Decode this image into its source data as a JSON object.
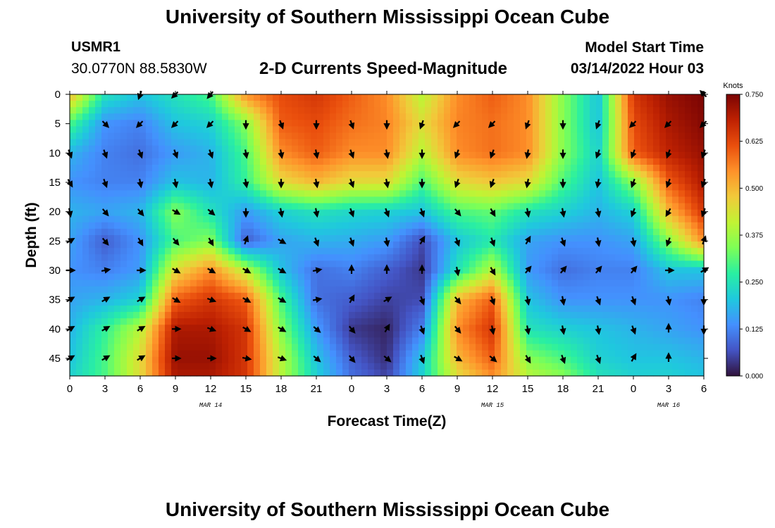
{
  "header": {
    "title": "University of Southern Mississippi Ocean Cube",
    "station": "USMR1",
    "coords": "30.0770N  88.5830W",
    "plot_title": "2-D Currents Speed-Magnitude",
    "model_label": "Model Start Time",
    "model_time": "03/14/2022 Hour 03"
  },
  "footer": {
    "title": "University of Southern Mississippi Ocean Cube"
  },
  "chart_data": {
    "type": "heatmap",
    "title": "2-D Currents Speed-Magnitude",
    "xlabel": "Forecast Time(Z)",
    "ylabel": "Depth (ft)",
    "x_tick_labels": [
      "0",
      "3",
      "6",
      "9",
      "12",
      "15",
      "18",
      "21",
      "0",
      "3",
      "6",
      "9",
      "12",
      "15",
      "18",
      "21",
      "0",
      "3",
      "6"
    ],
    "x_range": [
      0,
      54
    ],
    "date_labels": [
      {
        "text": "MAR 14",
        "hour": 12
      },
      {
        "text": "MAR 15",
        "hour": 36
      },
      {
        "text": "MAR 16",
        "hour": 51
      }
    ],
    "y_ticks": [
      0,
      5,
      10,
      15,
      20,
      25,
      30,
      35,
      40,
      45
    ],
    "y_range": [
      0,
      48
    ],
    "colorbar": {
      "unit": "Knots",
      "ticks": [
        "0.750",
        "0.625",
        "0.500",
        "0.375",
        "0.250",
        "0.125",
        "0.000"
      ],
      "range": [
        0,
        0.75
      ],
      "colors": [
        "#30123b",
        "#4454c4",
        "#4490fe",
        "#1fc8de",
        "#29efa2",
        "#7dff56",
        "#c1f334",
        "#f1ca3a",
        "#fe922a",
        "#ea4f0d",
        "#be2102",
        "#7a0403"
      ]
    },
    "grid_times": [
      0,
      3,
      6,
      9,
      12,
      15,
      18,
      21,
      24,
      27,
      30,
      33,
      36,
      39,
      42,
      45,
      48,
      51,
      54
    ],
    "grid_depths": [
      0,
      5,
      10,
      15,
      20,
      25,
      30,
      35,
      40,
      45,
      48
    ],
    "speed_knots": [
      [
        0.5,
        0.25,
        0.2,
        0.25,
        0.3,
        0.55,
        0.62,
        0.65,
        0.6,
        0.55,
        0.4,
        0.55,
        0.6,
        0.55,
        0.35,
        0.2,
        0.65,
        0.72,
        0.75
      ],
      [
        0.3,
        0.14,
        0.12,
        0.2,
        0.22,
        0.35,
        0.6,
        0.62,
        0.58,
        0.56,
        0.45,
        0.56,
        0.58,
        0.55,
        0.35,
        0.2,
        0.62,
        0.7,
        0.74
      ],
      [
        0.18,
        0.12,
        0.1,
        0.15,
        0.18,
        0.3,
        0.55,
        0.6,
        0.55,
        0.55,
        0.4,
        0.55,
        0.58,
        0.55,
        0.35,
        0.22,
        0.6,
        0.68,
        0.72
      ],
      [
        0.14,
        0.12,
        0.12,
        0.2,
        0.18,
        0.28,
        0.45,
        0.5,
        0.45,
        0.45,
        0.3,
        0.45,
        0.48,
        0.45,
        0.3,
        0.2,
        0.35,
        0.6,
        0.7
      ],
      [
        0.18,
        0.16,
        0.18,
        0.35,
        0.25,
        0.15,
        0.22,
        0.25,
        0.23,
        0.22,
        0.2,
        0.3,
        0.32,
        0.25,
        0.22,
        0.18,
        0.22,
        0.5,
        0.65
      ],
      [
        0.16,
        0.08,
        0.14,
        0.3,
        0.35,
        0.08,
        0.16,
        0.18,
        0.17,
        0.15,
        0.06,
        0.2,
        0.26,
        0.16,
        0.14,
        0.14,
        0.16,
        0.35,
        0.55
      ],
      [
        0.14,
        0.12,
        0.15,
        0.45,
        0.55,
        0.4,
        0.2,
        0.1,
        0.12,
        0.08,
        0.04,
        0.25,
        0.4,
        0.15,
        0.1,
        0.12,
        0.12,
        0.2,
        0.2
      ],
      [
        0.16,
        0.18,
        0.22,
        0.6,
        0.65,
        0.6,
        0.3,
        0.1,
        0.08,
        0.05,
        0.06,
        0.5,
        0.6,
        0.2,
        0.14,
        0.14,
        0.14,
        0.14,
        0.12
      ],
      [
        0.18,
        0.28,
        0.4,
        0.7,
        0.7,
        0.65,
        0.35,
        0.15,
        0.04,
        0.02,
        0.12,
        0.55,
        0.65,
        0.25,
        0.22,
        0.2,
        0.18,
        0.16,
        0.14
      ],
      [
        0.2,
        0.3,
        0.45,
        0.72,
        0.72,
        0.65,
        0.4,
        0.2,
        0.08,
        0.03,
        0.2,
        0.5,
        0.6,
        0.35,
        0.3,
        0.22,
        0.2,
        0.2,
        0.18
      ],
      [
        0.22,
        0.3,
        0.45,
        0.7,
        0.7,
        0.65,
        0.4,
        0.22,
        0.1,
        0.05,
        0.22,
        0.45,
        0.55,
        0.4,
        0.35,
        0.25,
        0.22,
        0.22,
        0.2
      ]
    ],
    "arrow_times": [
      0,
      3,
      6,
      9,
      12,
      15,
      18,
      21,
      24,
      27,
      30,
      33,
      36,
      39,
      42,
      45,
      48,
      51,
      54
    ],
    "arrow_depths": [
      0,
      5,
      10,
      15,
      20,
      25,
      30,
      35,
      40,
      45
    ],
    "arrow_direction_deg": [
      [
        null,
        null,
        200,
        225,
        220,
        null,
        null,
        null,
        null,
        null,
        null,
        null,
        null,
        null,
        null,
        null,
        null,
        null,
        315
      ],
      [
        null,
        135,
        225,
        225,
        225,
        180,
        160,
        180,
        160,
        180,
        200,
        225,
        225,
        200,
        180,
        200,
        225,
        225,
        225
      ],
      [
        160,
        160,
        160,
        160,
        160,
        170,
        170,
        170,
        160,
        170,
        180,
        200,
        200,
        190,
        180,
        200,
        200,
        200,
        200
      ],
      [
        150,
        160,
        170,
        170,
        170,
        170,
        180,
        170,
        160,
        170,
        180,
        200,
        200,
        190,
        180,
        190,
        200,
        200,
        200
      ],
      [
        170,
        140,
        140,
        120,
        130,
        180,
        170,
        170,
        160,
        160,
        160,
        140,
        150,
        170,
        170,
        170,
        200,
        210,
        200
      ],
      [
        60,
        140,
        150,
        140,
        150,
        20,
        120,
        160,
        160,
        170,
        30,
        160,
        160,
        30,
        160,
        170,
        170,
        200,
        20
      ],
      [
        90,
        80,
        90,
        120,
        120,
        120,
        120,
        80,
        0,
        0,
        0,
        170,
        150,
        40,
        40,
        40,
        40,
        90,
        60
      ],
      [
        60,
        60,
        60,
        120,
        110,
        120,
        120,
        80,
        30,
        60,
        160,
        140,
        160,
        170,
        170,
        160,
        160,
        170,
        180
      ],
      [
        60,
        60,
        60,
        90,
        110,
        120,
        120,
        130,
        140,
        30,
        160,
        140,
        170,
        170,
        170,
        170,
        160,
        0,
        180
      ],
      [
        60,
        60,
        60,
        90,
        90,
        100,
        110,
        130,
        140,
        130,
        160,
        120,
        130,
        150,
        160,
        160,
        30,
        0,
        null
      ]
    ]
  }
}
